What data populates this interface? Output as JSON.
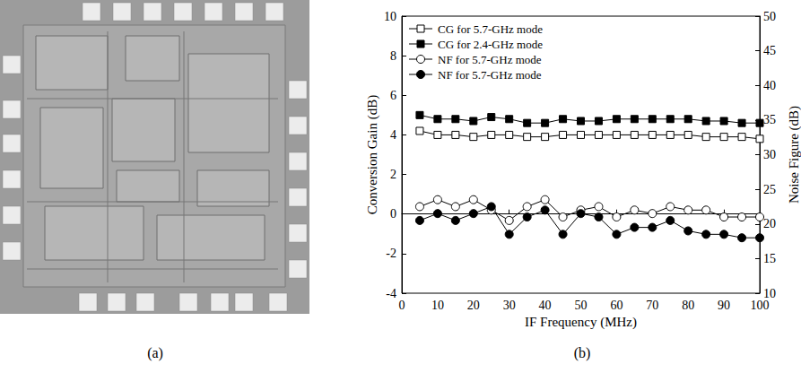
{
  "panel_labels": [
    "(a)",
    "(b)"
  ],
  "chart_data": {
    "type": "line",
    "x_label": "IF Frequency (MHz)",
    "y_label": "Conversion Gain (dB)",
    "y2_label": "Noise Figure (dB)",
    "x": [
      5,
      10,
      15,
      20,
      25,
      30,
      35,
      40,
      45,
      50,
      55,
      60,
      65,
      70,
      75,
      80,
      85,
      90,
      95,
      100
    ],
    "xlim": [
      0,
      100
    ],
    "xticks": [
      0,
      10,
      20,
      30,
      40,
      50,
      60,
      70,
      80,
      90,
      100
    ],
    "ylim": [
      -4,
      10
    ],
    "yticks": [
      -4,
      -2,
      0,
      2,
      4,
      6,
      8,
      10
    ],
    "y2lim": [
      10,
      50
    ],
    "y2ticks": [
      10,
      15,
      20,
      25,
      30,
      35,
      40,
      45,
      50
    ],
    "grid": false,
    "legend": "upper left",
    "series": [
      {
        "name": "CG for 5.7-GHz mode",
        "color": "#000000",
        "marker": "open-square",
        "values": [
          4.2,
          4.0,
          4.0,
          3.9,
          4.0,
          4.0,
          3.9,
          3.9,
          4.0,
          4.0,
          4.0,
          4.0,
          4.0,
          4.0,
          4.0,
          4.0,
          3.9,
          3.9,
          3.9,
          3.8
        ]
      },
      {
        "name": "CG for 2.4-GHz mode",
        "color": "#000000",
        "marker": "filled-square",
        "values": [
          5.0,
          4.8,
          4.8,
          4.7,
          4.9,
          4.8,
          4.6,
          4.6,
          4.8,
          4.7,
          4.7,
          4.8,
          4.8,
          4.8,
          4.8,
          4.8,
          4.7,
          4.7,
          4.6,
          4.6
        ]
      },
      {
        "name": "NF for 5.7-GHz mode",
        "color": "#000000",
        "marker": "open-circle",
        "axis": "y2",
        "values": [
          22.5,
          23.5,
          22.5,
          23.5,
          22,
          20.5,
          22.5,
          23.5,
          21,
          22,
          22.5,
          21,
          22,
          21.5,
          22.5,
          22,
          22,
          21,
          21,
          21
        ]
      },
      {
        "name": "NF for 5.7-GHz mode",
        "color": "#000000",
        "marker": "filled-circle",
        "axis": "y2",
        "values": [
          20.5,
          21.5,
          20.5,
          21.5,
          22.5,
          18.5,
          21,
          22,
          18.5,
          21.5,
          21,
          18.5,
          19.5,
          19.5,
          20.5,
          19,
          18.5,
          18.5,
          18,
          18
        ]
      }
    ]
  }
}
